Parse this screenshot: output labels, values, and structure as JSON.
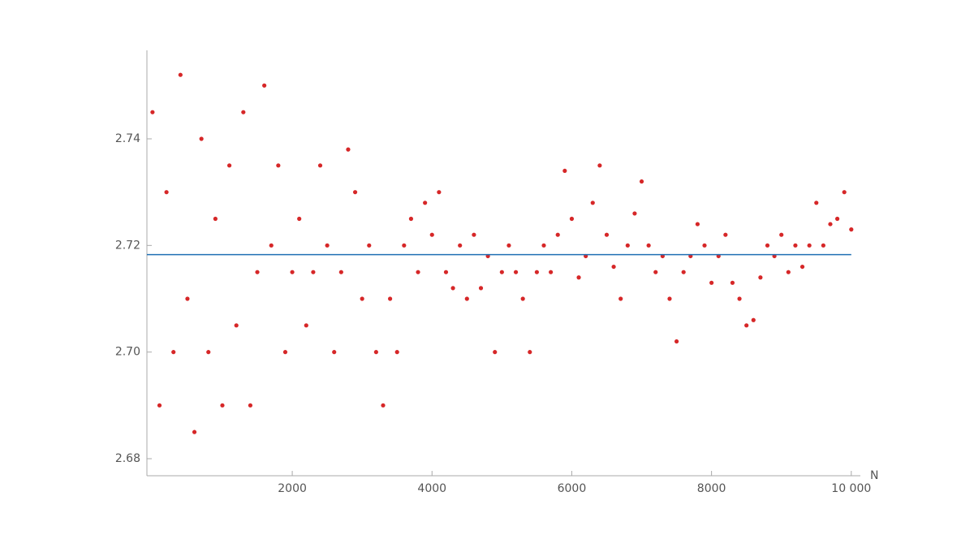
{
  "chart_data": {
    "type": "scatter",
    "x_label": "N",
    "series": [
      {
        "color": "#d62728",
        "x": [
          0,
          100,
          200,
          300,
          400,
          500,
          600,
          700,
          800,
          900,
          1000,
          1100,
          1200,
          1300,
          1400,
          1500,
          1600,
          1700,
          1800,
          1900,
          2000,
          2100,
          2200,
          2300,
          2400,
          2500,
          2600,
          2700,
          2800,
          2900,
          3000,
          3100,
          3200,
          3300,
          3400,
          3500,
          3600,
          3700,
          3800,
          3900,
          4000,
          4100,
          4200,
          4300,
          4400,
          4500,
          4600,
          4700,
          4800,
          4900,
          5000,
          5100,
          5200,
          5300,
          5400,
          5500,
          5600,
          5700,
          5800,
          5900,
          6000,
          6100,
          6200,
          6300,
          6400,
          6500,
          6600,
          6700,
          6800,
          6900,
          7000,
          7100,
          7200,
          7300,
          7400,
          7500,
          7600,
          7700,
          7800,
          7900,
          8000,
          8100,
          8200,
          8300,
          8400,
          8500,
          8600,
          8700,
          8800,
          8900,
          9000,
          9100,
          9200,
          9300,
          9400,
          9500,
          9600,
          9700,
          9800,
          9900,
          10000
        ],
        "values": [
          2.745,
          2.69,
          2.73,
          2.7,
          2.752,
          2.71,
          2.685,
          2.74,
          2.7,
          2.725,
          2.69,
          2.735,
          2.705,
          2.745,
          2.69,
          2.715,
          2.75,
          2.72,
          2.735,
          2.7,
          2.715,
          2.725,
          2.705,
          2.715,
          2.735,
          2.72,
          2.7,
          2.715,
          2.738,
          2.73,
          2.71,
          2.72,
          2.7,
          2.69,
          2.71,
          2.7,
          2.72,
          2.725,
          2.715,
          2.728,
          2.722,
          2.73,
          2.715,
          2.712,
          2.72,
          2.71,
          2.722,
          2.712,
          2.718,
          2.7,
          2.715,
          2.72,
          2.715,
          2.71,
          2.7,
          2.715,
          2.72,
          2.715,
          2.722,
          2.734,
          2.725,
          2.714,
          2.718,
          2.728,
          2.735,
          2.722,
          2.716,
          2.71,
          2.72,
          2.726,
          2.732,
          2.72,
          2.715,
          2.718,
          2.71,
          2.702,
          2.715,
          2.718,
          2.724,
          2.72,
          2.713,
          2.718,
          2.722,
          2.713,
          2.71,
          2.705,
          2.706,
          2.714,
          2.72,
          2.718,
          2.722,
          2.715,
          2.72,
          2.716,
          2.72,
          2.728,
          2.72,
          2.724,
          2.725,
          2.73,
          2.723
        ]
      }
    ],
    "reference": {
      "value": 2.71828,
      "color": "#1f6fb4"
    },
    "xlim": [
      -80,
      10130
    ],
    "ylim": [
      2.6768,
      2.7566
    ],
    "xticks": [
      2000,
      4000,
      6000,
      8000,
      {
        "value": 10000,
        "label": "10 000"
      }
    ],
    "yticks": [
      {
        "value": 2.68,
        "label": "2.68"
      },
      {
        "value": 2.7,
        "label": "2.70"
      },
      {
        "value": 2.72,
        "label": "2.72"
      },
      {
        "value": 2.74,
        "label": "2.74"
      }
    ]
  }
}
